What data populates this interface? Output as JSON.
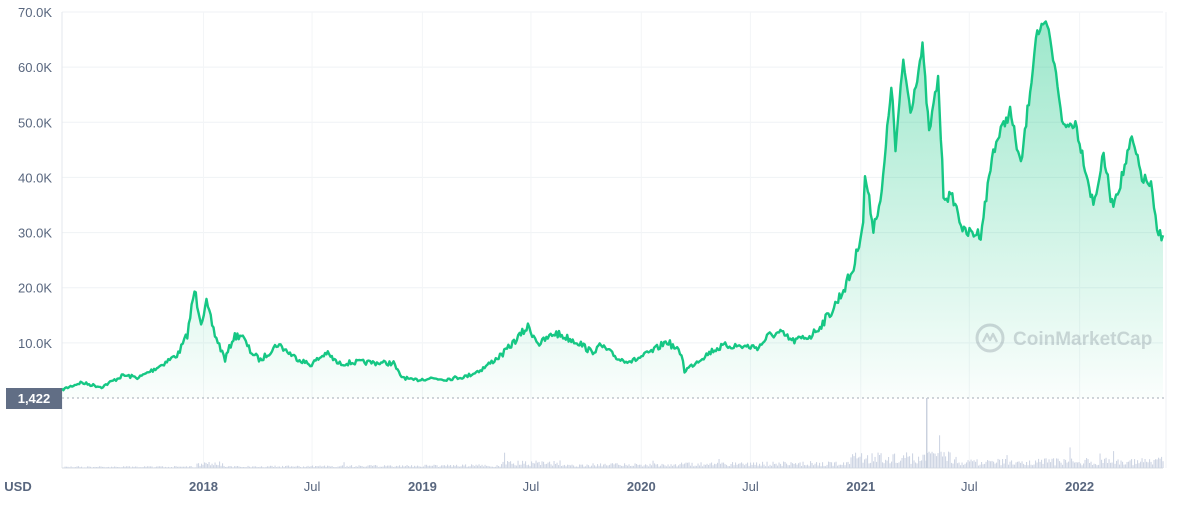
{
  "chart_data": {
    "type": "area",
    "currency_label": "USD",
    "start_marker": "1,422",
    "watermark": "CoinMarketCap",
    "ylim": [
      0,
      70000
    ],
    "y_ticks": [
      {
        "label": "10.0K",
        "value": 10000
      },
      {
        "label": "20.0K",
        "value": 20000
      },
      {
        "label": "30.0K",
        "value": 30000
      },
      {
        "label": "40.0K",
        "value": 40000
      },
      {
        "label": "50.0K",
        "value": 50000
      },
      {
        "label": "60.0K",
        "value": 60000
      },
      {
        "label": "70.0K",
        "value": 70000
      }
    ],
    "x_ticks": [
      {
        "label": "2018",
        "date": "2018-01-01",
        "bold": true
      },
      {
        "label": "Jul",
        "date": "2018-07-01",
        "bold": false
      },
      {
        "label": "2019",
        "date": "2019-01-01",
        "bold": true
      },
      {
        "label": "Jul",
        "date": "2019-07-01",
        "bold": false
      },
      {
        "label": "2020",
        "date": "2020-01-01",
        "bold": true
      },
      {
        "label": "Jul",
        "date": "2020-07-01",
        "bold": false
      },
      {
        "label": "2021",
        "date": "2021-01-01",
        "bold": true
      },
      {
        "label": "Jul",
        "date": "2021-07-01",
        "bold": false
      },
      {
        "label": "2022",
        "date": "2022-01-01",
        "bold": true
      }
    ],
    "grid": true,
    "series": [
      {
        "color": "#16c784",
        "points": [
          [
            "2017-05-10",
            1500
          ],
          [
            "2017-06-10",
            2800
          ],
          [
            "2017-07-15",
            2000
          ],
          [
            "2017-08-20",
            4100
          ],
          [
            "2017-09-15",
            3700
          ],
          [
            "2017-10-20",
            5800
          ],
          [
            "2017-11-20",
            8000
          ],
          [
            "2017-12-05",
            11500
          ],
          [
            "2017-12-17",
            19500
          ],
          [
            "2017-12-28",
            14000
          ],
          [
            "2018-01-06",
            17000
          ],
          [
            "2018-01-20",
            11500
          ],
          [
            "2018-02-06",
            7000
          ],
          [
            "2018-02-20",
            11000
          ],
          [
            "2018-03-05",
            11500
          ],
          [
            "2018-03-20",
            8500
          ],
          [
            "2018-04-06",
            6800
          ],
          [
            "2018-05-05",
            9800
          ],
          [
            "2018-06-01",
            7500
          ],
          [
            "2018-06-28",
            6000
          ],
          [
            "2018-07-25",
            8200
          ],
          [
            "2018-08-14",
            6200
          ],
          [
            "2018-09-15",
            6500
          ],
          [
            "2018-10-15",
            6400
          ],
          [
            "2018-11-14",
            6300
          ],
          [
            "2018-11-25",
            4000
          ],
          [
            "2018-12-15",
            3200
          ],
          [
            "2019-01-15",
            3600
          ],
          [
            "2019-02-08",
            3400
          ],
          [
            "2019-03-15",
            3900
          ],
          [
            "2019-04-10",
            5200
          ],
          [
            "2019-05-15",
            8000
          ],
          [
            "2019-06-26",
            12900
          ],
          [
            "2019-07-15",
            9800
          ],
          [
            "2019-08-10",
            11800
          ],
          [
            "2019-09-20",
            10000
          ],
          [
            "2019-10-10",
            8300
          ],
          [
            "2019-10-26",
            9500
          ],
          [
            "2019-11-25",
            7000
          ],
          [
            "2019-12-18",
            6700
          ],
          [
            "2020-01-20",
            8500
          ],
          [
            "2020-02-13",
            10300
          ],
          [
            "2020-03-08",
            8000
          ],
          [
            "2020-03-13",
            4900
          ],
          [
            "2020-04-05",
            6800
          ],
          [
            "2020-04-30",
            8700
          ],
          [
            "2020-05-20",
            9500
          ],
          [
            "2020-06-15",
            9400
          ],
          [
            "2020-07-15",
            9200
          ],
          [
            "2020-07-31",
            11300
          ],
          [
            "2020-08-20",
            11800
          ],
          [
            "2020-09-10",
            10300
          ],
          [
            "2020-10-10",
            11300
          ],
          [
            "2020-10-25",
            13000
          ],
          [
            "2020-11-15",
            16000
          ],
          [
            "2020-12-01",
            19200
          ],
          [
            "2020-12-20",
            23500
          ],
          [
            "2021-01-05",
            32000
          ],
          [
            "2021-01-08",
            40500
          ],
          [
            "2021-01-22",
            31000
          ],
          [
            "2021-02-05",
            37000
          ],
          [
            "2021-02-21",
            57000
          ],
          [
            "2021-02-28",
            45000
          ],
          [
            "2021-03-13",
            61200
          ],
          [
            "2021-03-25",
            52000
          ],
          [
            "2021-04-14",
            63500
          ],
          [
            "2021-04-25",
            48000
          ],
          [
            "2021-05-10",
            58000
          ],
          [
            "2021-05-19",
            37000
          ],
          [
            "2021-06-05",
            36000
          ],
          [
            "2021-06-22",
            30000
          ],
          [
            "2021-07-20",
            29800
          ],
          [
            "2021-08-10",
            45000
          ],
          [
            "2021-08-25",
            49000
          ],
          [
            "2021-09-07",
            52000
          ],
          [
            "2021-09-25",
            42000
          ],
          [
            "2021-10-15",
            60000
          ],
          [
            "2021-10-20",
            66000
          ],
          [
            "2021-11-08",
            67500
          ],
          [
            "2021-11-25",
            57000
          ],
          [
            "2021-12-05",
            49000
          ],
          [
            "2021-12-25",
            50000
          ],
          [
            "2022-01-10",
            42000
          ],
          [
            "2022-01-24",
            35000
          ],
          [
            "2022-02-10",
            44000
          ],
          [
            "2022-02-24",
            35000
          ],
          [
            "2022-03-10",
            39000
          ],
          [
            "2022-03-29",
            47000
          ],
          [
            "2022-04-15",
            40000
          ],
          [
            "2022-04-30",
            38500
          ],
          [
            "2022-05-10",
            30000
          ],
          [
            "2022-05-20",
            29500
          ]
        ]
      }
    ]
  }
}
